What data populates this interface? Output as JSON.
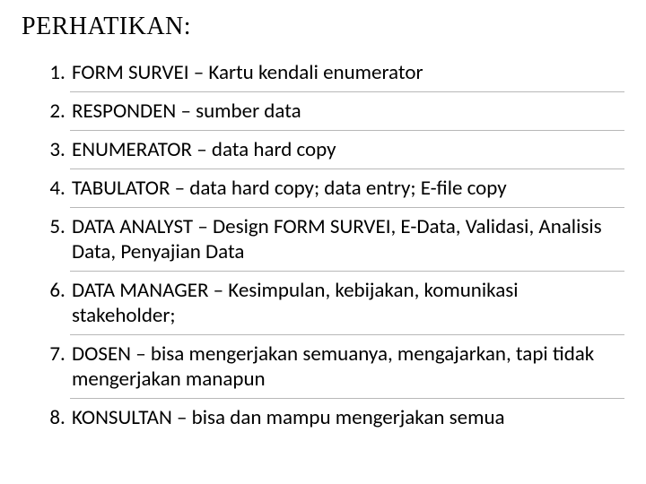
{
  "title": "PERHATIKAN:",
  "items": [
    "FORM SURVEI – Kartu kendali enumerator",
    "RESPONDEN – sumber data",
    "ENUMERATOR – data hard copy",
    "TABULATOR – data hard copy; data entry; E-file copy",
    "DATA ANALYST – Design FORM SURVEI, E-Data, Validasi, Analisis Data, Penyajian Data",
    "DATA MANAGER – Kesimpulan, kebijakan, komunikasi stakeholder;",
    "DOSEN – bisa mengerjakan semuanya, mengajarkan, tapi tidak mengerjakan manapun",
    "KONSULTAN – bisa dan mampu mengerjakan semua"
  ],
  "style": {
    "background_color": "#ffffff",
    "text_color": "#000000",
    "title_font_family": "Times New Roman",
    "title_fontsize_pt": 21,
    "body_font_family": "Calibri",
    "body_fontsize_pt": 17,
    "divider_color": "#b8b8b8",
    "list_type": "numbered"
  }
}
